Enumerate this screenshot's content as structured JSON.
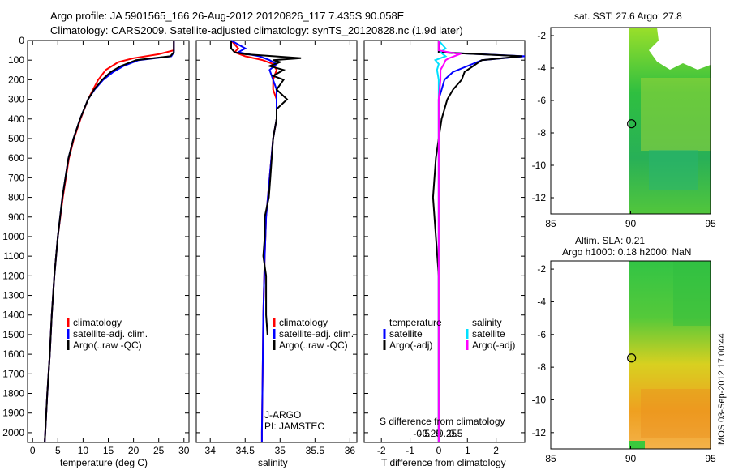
{
  "header": {
    "line1": "Argo profile: JA 5901565_166 26-Aug-2012 20120826_117 7.435S 90.058E",
    "line2": "Climatology: CARS2009. Satellite-adjusted climatology: synTS_20120828.nc (1.9d later)"
  },
  "colors": {
    "clim": "#ff0000",
    "sat": "#0000ff",
    "argo": "#000000",
    "sat_s": "#00e0ff",
    "argo_s": "#ff00ff"
  },
  "chart_data": [
    {
      "id": "temperature",
      "type": "line",
      "xlabel": "temperature (deg C)",
      "ylim": [
        2050,
        0
      ],
      "xlim": [
        -1,
        31
      ],
      "xticks": [
        "0",
        "5",
        "10",
        "15",
        "20",
        "25",
        "30"
      ],
      "yticks": [
        "0",
        "100",
        "200",
        "300",
        "400",
        "500",
        "600",
        "700",
        "800",
        "900",
        "1000",
        "1100",
        "1200",
        "1300",
        "1400",
        "1500",
        "1600",
        "1700",
        "1800",
        "1900",
        "2000"
      ],
      "legend": [
        "climatology",
        "satellite-adj. clim.",
        "Argo(..raw -QC)"
      ],
      "series": [
        {
          "name": "climatology",
          "depth": [
            0,
            50,
            70,
            90,
            110,
            150,
            200,
            250,
            300,
            400,
            500,
            600,
            800,
            1000,
            1200,
            1400,
            1600,
            1800,
            2000,
            2050
          ],
          "values": [
            28,
            28,
            25,
            20,
            17,
            14.5,
            13,
            12,
            11,
            9.5,
            8.2,
            7.2,
            6,
            5,
            4.3,
            3.8,
            3.4,
            2.9,
            2.5,
            2.4
          ]
        },
        {
          "name": "satellite-adj. clim.",
          "depth": [
            0,
            60,
            80,
            100,
            130,
            160,
            200,
            250,
            300,
            400,
            500,
            600,
            800,
            1000,
            1200,
            1400,
            1600,
            1800,
            2000,
            2050
          ],
          "values": [
            28,
            28,
            27.5,
            21,
            18,
            16,
            14,
            12.3,
            11,
            9.4,
            8.1,
            7.1,
            5.9,
            5,
            4.3,
            3.8,
            3.4,
            2.9,
            2.5,
            2.4
          ]
        },
        {
          "name": "Argo(..raw -QC)",
          "depth": [
            0,
            60,
            80,
            100,
            130,
            160,
            200,
            250,
            300,
            400,
            500,
            600,
            800,
            1000,
            1200,
            1400,
            1600,
            1800,
            2000,
            2050
          ],
          "values": [
            28,
            28,
            27.3,
            20.5,
            17.5,
            15.5,
            13.8,
            12.2,
            11,
            9.4,
            8.1,
            7.1,
            5.9,
            5,
            4.3,
            3.8,
            3.4,
            2.9,
            2.5,
            2.4
          ]
        }
      ]
    },
    {
      "id": "salinity",
      "type": "line",
      "xlabel": "salinity",
      "ylim": [
        2050,
        0
      ],
      "xlim": [
        33.8,
        36.1
      ],
      "xticks": [
        "34",
        "34.5",
        "35",
        "35.5",
        "36"
      ],
      "legend": [
        "climatology",
        "satellite-adj. clim.",
        "Argo(..raw -QC)"
      ],
      "annotations": [
        "J-ARGO",
        "PI: JAMSTEC"
      ],
      "series": [
        {
          "name": "climatology",
          "depth": [
            0,
            40,
            60,
            80,
            100,
            120,
            150,
            200,
            250,
            300,
            400,
            500,
            700,
            900,
            1100,
            1400,
            1700,
            2000,
            2050
          ],
          "values": [
            34.3,
            34.4,
            34.35,
            34.5,
            34.75,
            34.9,
            34.95,
            34.9,
            34.9,
            34.95,
            34.95,
            34.9,
            34.85,
            34.8,
            34.78,
            34.76,
            34.75,
            34.74,
            34.74
          ]
        },
        {
          "name": "satellite-adj. clim.",
          "depth": [
            0,
            40,
            60,
            80,
            100,
            120,
            150,
            200,
            250,
            300,
            400,
            500,
            700,
            900,
            1100,
            1400,
            1700,
            2000,
            2050
          ],
          "values": [
            34.3,
            34.5,
            34.4,
            34.7,
            34.85,
            34.95,
            34.85,
            34.9,
            34.95,
            34.95,
            34.95,
            34.9,
            34.85,
            34.8,
            34.78,
            34.76,
            34.75,
            34.74,
            34.74
          ]
        },
        {
          "name": "Argo(..raw -QC)",
          "depth": [
            0,
            40,
            60,
            70,
            90,
            100,
            110,
            130,
            150,
            180,
            200,
            250,
            300,
            350,
            400,
            500,
            600,
            700,
            800,
            900,
            1000,
            1100,
            1200,
            1300,
            1400,
            1500
          ],
          "values": [
            34.3,
            34.3,
            34.35,
            34.5,
            35.3,
            34.9,
            35.0,
            34.85,
            35.05,
            34.9,
            35.05,
            34.95,
            35.1,
            34.95,
            34.95,
            34.9,
            34.88,
            34.86,
            34.84,
            34.78,
            34.78,
            34.76,
            34.8,
            34.8,
            34.8,
            34.82
          ]
        }
      ]
    },
    {
      "id": "difference",
      "type": "line",
      "xlabel": "T difference from climatology",
      "x2label": "S difference from climatology",
      "ylim": [
        2050,
        0
      ],
      "xlim": [
        -2.6,
        3
      ],
      "xticks": [
        "-2",
        "-1",
        "0",
        "1",
        "2"
      ],
      "x2ticks": [
        "-0.5",
        "-0.25",
        "0",
        "0.25",
        "0.5"
      ],
      "legend_left_title": "temperature",
      "legend_right_title": "salinity",
      "legend_left": [
        "satellite",
        "Argo(-adj)"
      ],
      "legend_right": [
        "satellite",
        "Argo(-adj)"
      ],
      "series": [
        {
          "name": "T satellite",
          "depth": [
            0,
            60,
            80,
            100,
            130,
            160,
            200,
            250,
            300,
            400,
            500,
            600,
            800,
            1000,
            1200,
            1400,
            1600,
            1800,
            2000,
            2050
          ],
          "values": [
            0,
            0,
            3,
            1.5,
            1,
            0.5,
            0.2,
            0.1,
            0,
            0,
            0,
            0,
            0,
            0,
            0,
            0,
            0,
            0,
            0,
            0
          ]
        },
        {
          "name": "T Argo(-adj)",
          "depth": [
            0,
            60,
            80,
            100,
            130,
            160,
            200,
            250,
            300,
            400,
            500,
            600,
            800,
            1000,
            1200,
            1400,
            1600,
            1800,
            2000,
            2050
          ],
          "values": [
            0,
            0,
            2.9,
            1.5,
            1.2,
            0.9,
            0.8,
            0.5,
            0.3,
            0.1,
            0,
            -0.1,
            -0.2,
            -0.1,
            0,
            0,
            0,
            0,
            0,
            0
          ]
        },
        {
          "name": "S satellite",
          "depth": [
            0,
            40,
            60,
            80,
            100,
            120,
            150,
            200,
            300,
            500,
            800,
            1100,
            1500,
            2000,
            2050
          ],
          "values": [
            0,
            0.2,
            0.05,
            0.2,
            -0.1,
            0,
            -0.05,
            0,
            0,
            0,
            0,
            0,
            0,
            0,
            0
          ]
        },
        {
          "name": "S Argo(-adj)",
          "depth": [
            0,
            50,
            70,
            90,
            100,
            120,
            150,
            200,
            300,
            500,
            800,
            1100,
            1500,
            2000,
            2050
          ],
          "values": [
            0,
            0,
            0.6,
            0.3,
            0.2,
            0.15,
            0.05,
            0.05,
            0,
            0,
            0,
            0,
            0,
            0,
            0
          ]
        }
      ]
    },
    {
      "id": "sst_map",
      "type": "heatmap",
      "title": "sat. SST: 27.6 Argo: 27.8",
      "xlim": [
        85,
        95
      ],
      "ylim": [
        -13,
        -1.5
      ],
      "xticks": [
        "85",
        "90",
        "95"
      ],
      "yticks": [
        "-2",
        "-4",
        "-6",
        "-8",
        "-10",
        "-12"
      ],
      "marker": {
        "lon": 90.058,
        "lat": -7.435
      }
    },
    {
      "id": "sla_map",
      "type": "heatmap",
      "title": "Altim. SLA: 0.21",
      "subtitle": "Argo h1000: 0.18 h2000: NaN",
      "xlim": [
        85,
        95
      ],
      "ylim": [
        -13,
        -1.5
      ],
      "xticks": [
        "85",
        "90",
        "95"
      ],
      "yticks": [
        "-2",
        "-4",
        "-6",
        "-8",
        "-10",
        "-12"
      ],
      "marker": {
        "lon": 90.058,
        "lat": -7.435
      }
    }
  ],
  "footer": {
    "stamp": "IMOS 03-Sep-2012 17:00:44"
  }
}
